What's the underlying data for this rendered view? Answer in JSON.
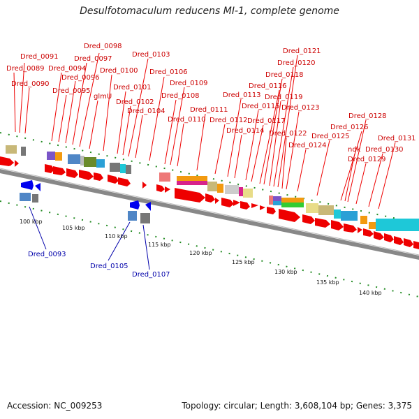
{
  "title": "Desulfotomaculum reducens MI-1, complete genome",
  "accession": "Accession: NC_009253",
  "topology": "Topology: circular; Length: 3,608,104 bp; Genes: 3,375",
  "colors": {
    "forward_gene": "#ee0000",
    "reverse_gene": "#0000ee",
    "forward_label": "#cc0000",
    "reverse_label": "#0000aa",
    "backbone": "#888888",
    "tick": "#228b22"
  },
  "kbp_labels": [
    "100 kbp",
    "105 kbp",
    "110 kbp",
    "115 kbp",
    "120 kbp",
    "125 kbp",
    "130 kbp",
    "135 kbp",
    "140 kbp"
  ],
  "forward_gene_labels": [
    "Dred_0091",
    "Dred_0089",
    "Dred_0090",
    "Dred_0094",
    "Dred_0095",
    "Dred_0096",
    "Dred_0097",
    "Dred_0098",
    "glmU",
    "Dred_0100",
    "Dred_0101",
    "Dred_0102",
    "Dred_0103",
    "Dred_0104",
    "Dred_0106",
    "Dred_0108",
    "Dred_0109",
    "Dred_0110",
    "Dred_0111",
    "Dred_0112",
    "Dred_0113",
    "Dred_0114",
    "Dred_0115",
    "Dred_0116",
    "Dred_0117",
    "Dred_0118",
    "Dred_0119",
    "Dred_0120",
    "Dred_0121",
    "Dred_0122",
    "Dred_0123",
    "Dred_0124",
    "Dred_0125",
    "Dred_0126",
    "Dred_0128",
    "ndk",
    "Dred_0129",
    "Dred_0130",
    "Dred_0131"
  ],
  "reverse_gene_labels": [
    "Dred_0093",
    "Dred_0105",
    "Dred_0107"
  ]
}
